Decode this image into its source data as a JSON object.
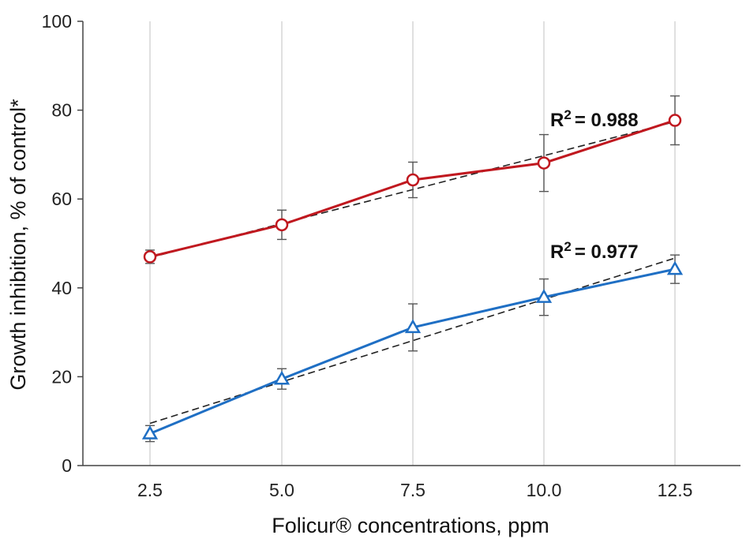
{
  "chart_data": {
    "type": "line",
    "xlabel": "Folicur® concentrations, ppm",
    "ylabel": "Growth inhibition, % of control*",
    "x": [
      2.5,
      5.0,
      7.5,
      10.0,
      12.5
    ],
    "x_tick_labels": [
      "2.5",
      "5.0",
      "7.5",
      "10.0",
      "12.5"
    ],
    "ylim": [
      0,
      100
    ],
    "y_ticks": [
      0,
      20,
      40,
      60,
      80,
      100
    ],
    "y_tick_labels": [
      "0",
      "20",
      "40",
      "60",
      "80",
      "100"
    ],
    "grid": "vertical",
    "series": [
      {
        "marker": "circle",
        "color": "#c0181f",
        "values": [
          47.0,
          54.2,
          64.3,
          68.1,
          77.7
        ],
        "errors": [
          1.5,
          3.3,
          4.0,
          6.4,
          5.5
        ],
        "trendline": {
          "style": "dashed",
          "from": 46.8,
          "to": 77.4,
          "r2_prefix": "R",
          "r2_sup": "2",
          "r2_value": "= 0.988"
        }
      },
      {
        "marker": "triangle",
        "color": "#1f6fc4",
        "values": [
          7.2,
          19.5,
          31.1,
          37.9,
          44.2
        ],
        "errors": [
          1.8,
          2.3,
          5.3,
          4.1,
          3.2
        ],
        "trendline": {
          "style": "dashed",
          "from": 9.5,
          "to": 46.7,
          "r2_prefix": "R",
          "r2_sup": "2",
          "r2_value": "= 0.977"
        }
      }
    ]
  }
}
